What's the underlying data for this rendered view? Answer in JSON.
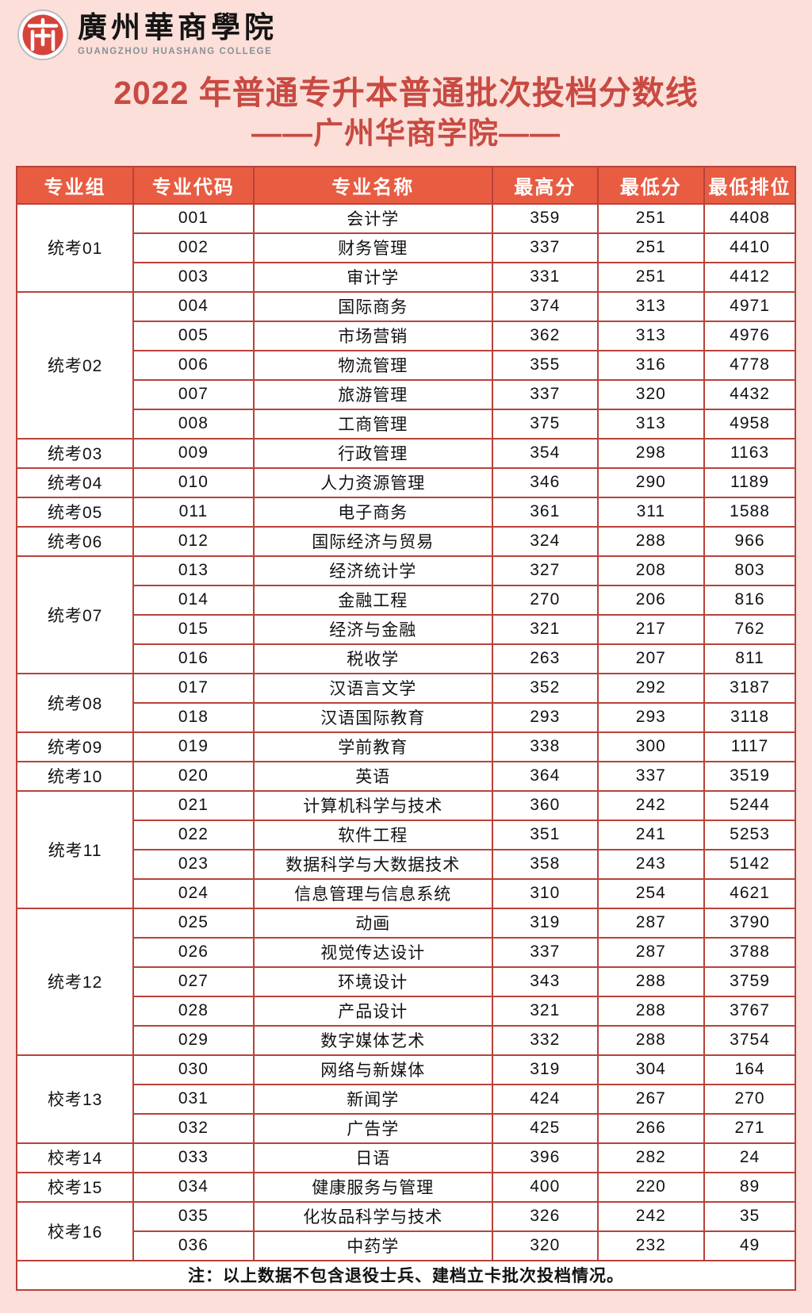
{
  "logo": {
    "name_cn": "廣州華商學院",
    "name_en": "GUANGZHOU HUASHANG COLLEGE",
    "emblem_icon": "college-seal",
    "emblem_color": "#d6433a",
    "ring_color": "#b9bcc4"
  },
  "title": {
    "line1": "2022 年普通专升本普通批次投档分数线",
    "line2": "——广州华商学院——"
  },
  "colors": {
    "page_bg": "#fbdfd8",
    "title_red": "#c84a42",
    "header_bg": "#e85c42",
    "table_border": "#b8423a",
    "note_red": "#c0393b"
  },
  "table": {
    "headers": [
      "专业组",
      "专业代码",
      "专业名称",
      "最高分",
      "最低分",
      "最低排位"
    ],
    "groups": [
      {
        "name": "统考01",
        "rows": [
          [
            "001",
            "会计学",
            "359",
            "251",
            "4408"
          ],
          [
            "002",
            "财务管理",
            "337",
            "251",
            "4410"
          ],
          [
            "003",
            "审计学",
            "331",
            "251",
            "4412"
          ]
        ]
      },
      {
        "name": "统考02",
        "rows": [
          [
            "004",
            "国际商务",
            "374",
            "313",
            "4971"
          ],
          [
            "005",
            "市场营销",
            "362",
            "313",
            "4976"
          ],
          [
            "006",
            "物流管理",
            "355",
            "316",
            "4778"
          ],
          [
            "007",
            "旅游管理",
            "337",
            "320",
            "4432"
          ],
          [
            "008",
            "工商管理",
            "375",
            "313",
            "4958"
          ]
        ]
      },
      {
        "name": "统考03",
        "rows": [
          [
            "009",
            "行政管理",
            "354",
            "298",
            "1163"
          ]
        ]
      },
      {
        "name": "统考04",
        "rows": [
          [
            "010",
            "人力资源管理",
            "346",
            "290",
            "1189"
          ]
        ]
      },
      {
        "name": "统考05",
        "rows": [
          [
            "011",
            "电子商务",
            "361",
            "311",
            "1588"
          ]
        ]
      },
      {
        "name": "统考06",
        "rows": [
          [
            "012",
            "国际经济与贸易",
            "324",
            "288",
            "966"
          ]
        ]
      },
      {
        "name": "统考07",
        "rows": [
          [
            "013",
            "经济统计学",
            "327",
            "208",
            "803"
          ],
          [
            "014",
            "金融工程",
            "270",
            "206",
            "816"
          ],
          [
            "015",
            "经济与金融",
            "321",
            "217",
            "762"
          ],
          [
            "016",
            "税收学",
            "263",
            "207",
            "811"
          ]
        ]
      },
      {
        "name": "统考08",
        "rows": [
          [
            "017",
            "汉语言文学",
            "352",
            "292",
            "3187"
          ],
          [
            "018",
            "汉语国际教育",
            "293",
            "293",
            "3118"
          ]
        ]
      },
      {
        "name": "统考09",
        "rows": [
          [
            "019",
            "学前教育",
            "338",
            "300",
            "1117"
          ]
        ]
      },
      {
        "name": "统考10",
        "rows": [
          [
            "020",
            "英语",
            "364",
            "337",
            "3519"
          ]
        ]
      },
      {
        "name": "统考11",
        "rows": [
          [
            "021",
            "计算机科学与技术",
            "360",
            "242",
            "5244"
          ],
          [
            "022",
            "软件工程",
            "351",
            "241",
            "5253"
          ],
          [
            "023",
            "数据科学与大数据技术",
            "358",
            "243",
            "5142"
          ],
          [
            "024",
            "信息管理与信息系统",
            "310",
            "254",
            "4621"
          ]
        ]
      },
      {
        "name": "统考12",
        "rows": [
          [
            "025",
            "动画",
            "319",
            "287",
            "3790"
          ],
          [
            "026",
            "视觉传达设计",
            "337",
            "287",
            "3788"
          ],
          [
            "027",
            "环境设计",
            "343",
            "288",
            "3759"
          ],
          [
            "028",
            "产品设计",
            "321",
            "288",
            "3767"
          ],
          [
            "029",
            "数字媒体艺术",
            "332",
            "288",
            "3754"
          ]
        ]
      },
      {
        "name": "校考13",
        "rows": [
          [
            "030",
            "网络与新媒体",
            "319",
            "304",
            "164"
          ],
          [
            "031",
            "新闻学",
            "424",
            "267",
            "270"
          ],
          [
            "032",
            "广告学",
            "425",
            "266",
            "271"
          ]
        ]
      },
      {
        "name": "校考14",
        "rows": [
          [
            "033",
            "日语",
            "396",
            "282",
            "24"
          ]
        ]
      },
      {
        "name": "校考15",
        "rows": [
          [
            "034",
            "健康服务与管理",
            "400",
            "220",
            "89"
          ]
        ]
      },
      {
        "name": "校考16",
        "rows": [
          [
            "035",
            "化妆品科学与技术",
            "326",
            "242",
            "35"
          ],
          [
            "036",
            "中药学",
            "320",
            "232",
            "49"
          ]
        ]
      }
    ],
    "note": "注：以上数据不包含退役士兵、建档立卡批次投档情况。"
  }
}
